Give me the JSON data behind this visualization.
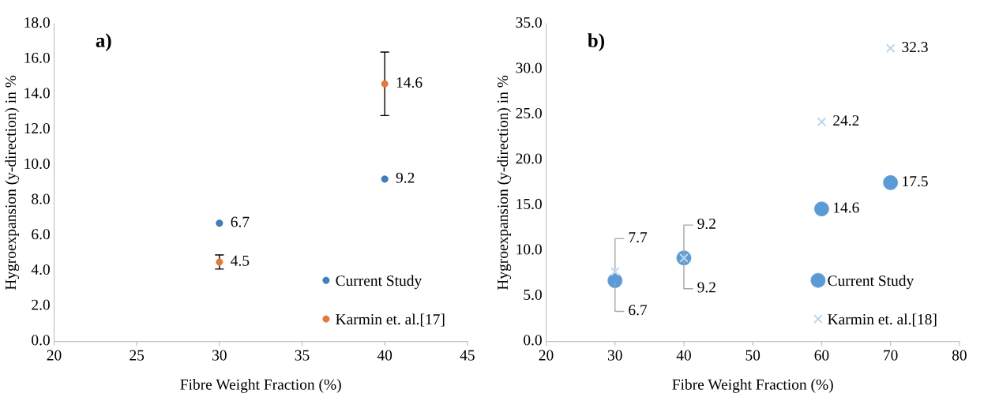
{
  "chart_data": [
    {
      "type": "scatter",
      "title": "a)",
      "xlabel": "Fibre Weight Fraction (%)",
      "ylabel": "Hygroexpansion (y-direction) in %",
      "xlim": [
        20,
        45
      ],
      "xticks": [
        20,
        25,
        30,
        35,
        40,
        45
      ],
      "ylim": [
        0,
        18
      ],
      "yticks": [
        {
          "value": 0,
          "label": "0.0"
        },
        {
          "value": 2,
          "label": "2.0"
        },
        {
          "value": 4,
          "label": "4.0"
        },
        {
          "value": 6,
          "label": "6.0"
        },
        {
          "value": 8,
          "label": "8.0"
        },
        {
          "value": 10,
          "label": "10.0"
        },
        {
          "value": 12,
          "label": "12.0"
        },
        {
          "value": 14,
          "label": "14.0"
        },
        {
          "value": 16,
          "label": "16.0"
        },
        {
          "value": 18,
          "label": "18.0"
        }
      ],
      "grid": false,
      "legend": "bottom right",
      "data_labels": true,
      "marker": "circle",
      "series": [
        {
          "name": "Current Study",
          "color": "#3f7fbf",
          "x": [
            30,
            40
          ],
          "values": [
            6.7,
            9.2
          ]
        },
        {
          "name": "Karmin et. al.[17]",
          "color": "#e07b39",
          "x": [
            30,
            40
          ],
          "values": [
            4.5,
            14.6
          ],
          "errors": [
            0.4,
            1.8
          ]
        }
      ]
    },
    {
      "type": "scatter",
      "title": "b)",
      "xlabel": "Fibre Weight Fraction (%)",
      "ylabel": "Hygroexpansion (y-direction) in %",
      "xlim": [
        20,
        80
      ],
      "xticks": [
        20,
        30,
        40,
        50,
        60,
        70,
        80
      ],
      "ylim": [
        0,
        35
      ],
      "yticks": [
        {
          "value": 0,
          "label": "0.0"
        },
        {
          "value": 5,
          "label": "5.0"
        },
        {
          "value": 10,
          "label": "10.0"
        },
        {
          "value": 15,
          "label": "15.0"
        },
        {
          "value": 20,
          "label": "20.0"
        },
        {
          "value": 25,
          "label": "25.0"
        },
        {
          "value": 30,
          "label": "30.0"
        },
        {
          "value": 35,
          "label": "35.0"
        }
      ],
      "grid": false,
      "legend": "bottom right",
      "data_labels": true,
      "series": [
        {
          "name": "Current Study",
          "color": "#5b9bd5",
          "marker": "circle",
          "x": [
            30,
            40,
            60,
            70
          ],
          "values": [
            6.7,
            9.2,
            14.6,
            17.5
          ]
        },
        {
          "name": "Karmin et. al.[18]",
          "color": "#bdd7ee",
          "marker": "cross",
          "x": [
            30,
            40,
            60,
            70
          ],
          "values": [
            7.7,
            9.2,
            24.2,
            32.3
          ]
        }
      ]
    }
  ]
}
